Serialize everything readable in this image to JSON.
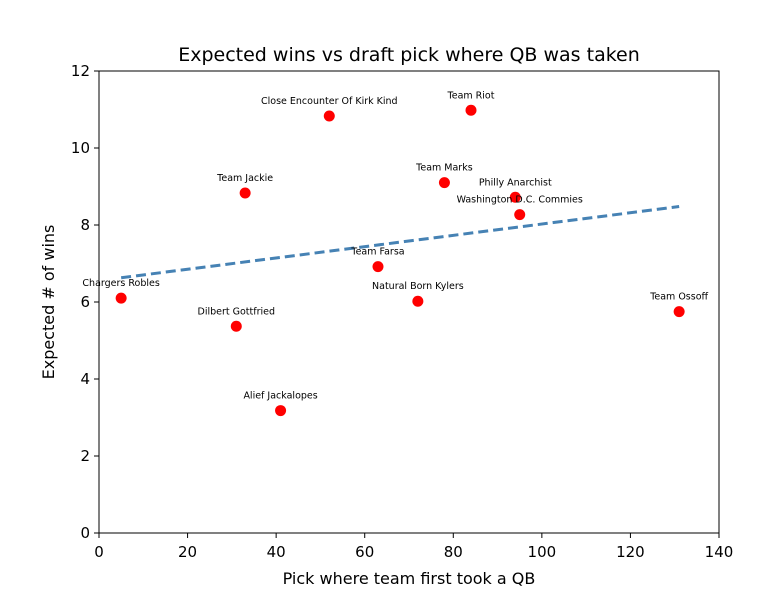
{
  "chart_data": {
    "type": "scatter",
    "title": "Expected wins vs draft pick where QB was taken",
    "xlabel": "Pick where team first took a QB",
    "ylabel": "Expected # of wins",
    "xlim": [
      0,
      140
    ],
    "ylim": [
      0,
      12
    ],
    "xticks": [
      0,
      20,
      40,
      60,
      80,
      100,
      120,
      140
    ],
    "yticks": [
      0,
      2,
      4,
      6,
      8,
      10,
      12
    ],
    "grid": false,
    "points": [
      {
        "label": "Chargers  Robles",
        "x": 5,
        "y": 6.1
      },
      {
        "label": "Dilbert Gottfried",
        "x": 31,
        "y": 5.37
      },
      {
        "label": "Team Jackie",
        "x": 33,
        "y": 8.83
      },
      {
        "label": "Alief Jackalopes",
        "x": 41,
        "y": 3.18
      },
      {
        "label": "Close Encounter Of Kirk Kind",
        "x": 52,
        "y": 10.83
      },
      {
        "label": "Team Farsa",
        "x": 63,
        "y": 6.92
      },
      {
        "label": "Natural Born Kylers",
        "x": 72,
        "y": 6.02
      },
      {
        "label": "Team Marks",
        "x": 78,
        "y": 9.1
      },
      {
        "label": "Team Riot",
        "x": 84,
        "y": 10.98
      },
      {
        "label": "Philly Anarchist",
        "x": 94,
        "y": 8.72
      },
      {
        "label": "Washington D.C. Commies",
        "x": 95,
        "y": 8.27
      },
      {
        "label": "Team Ossoff",
        "x": 131,
        "y": 5.75
      }
    ],
    "trendline": {
      "style": "dashed",
      "x": [
        5,
        131
      ],
      "y": [
        6.63,
        8.48
      ]
    },
    "colors": {
      "points": "#ff0000",
      "trendline": "#4682b4"
    }
  }
}
